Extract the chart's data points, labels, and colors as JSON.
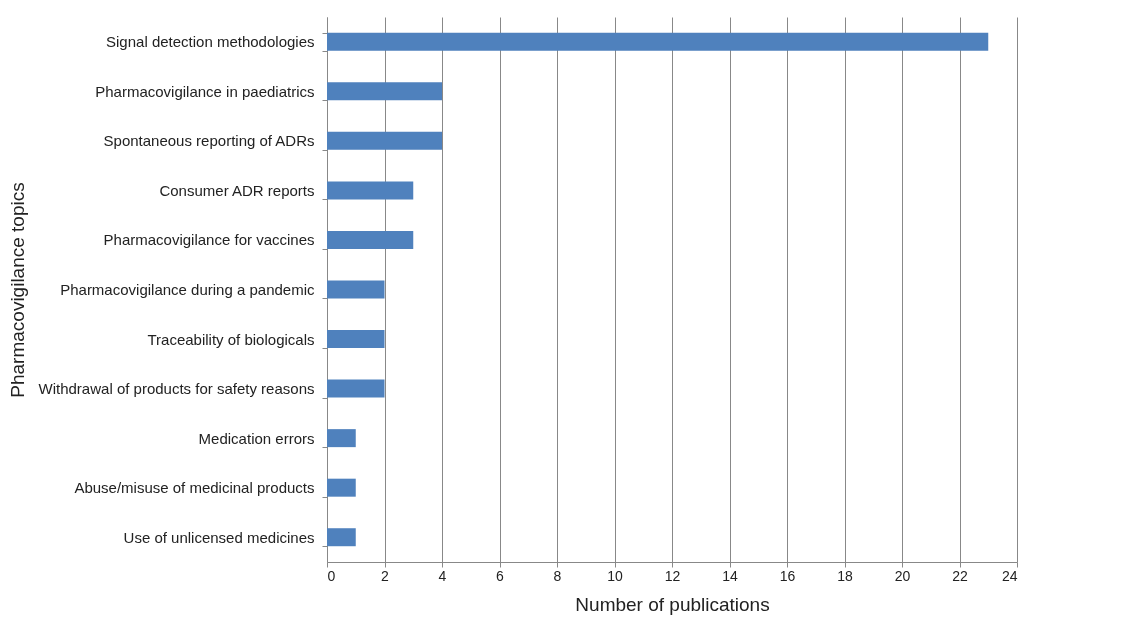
{
  "chart_data": {
    "type": "bar",
    "orientation": "horizontal",
    "xlabel": "Number of publications",
    "ylabel": "Pharmacovigilance topics",
    "categories": [
      "Signal detection methodologies",
      "Pharmacovigilance in paediatrics",
      "Spontaneous reporting of ADRs",
      "Consumer ADR reports",
      "Pharmacovigilance for vaccines",
      "Pharmacovigilance during a pandemic",
      "Traceability of biologicals",
      "Withdrawal of products for safety reasons",
      "Medication errors",
      "Abuse/misuse of medicinal products",
      "Use of unlicensed medicines"
    ],
    "values": [
      23,
      4,
      4,
      3,
      3,
      2,
      2,
      2,
      1,
      1,
      1
    ],
    "color": "#4f81bd",
    "xlim": [
      0,
      24
    ],
    "xticks": [
      0,
      2,
      4,
      6,
      8,
      10,
      12,
      14,
      16,
      18,
      20,
      22,
      24
    ],
    "grid": "x"
  }
}
